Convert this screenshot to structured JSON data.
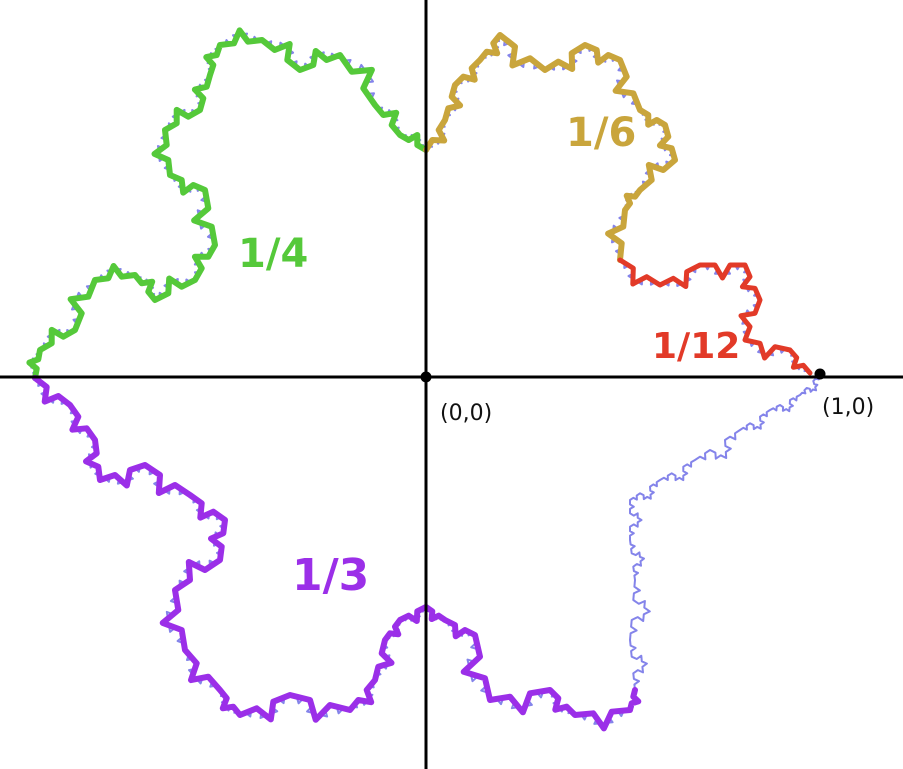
{
  "axes": {
    "origin_label": "(0,0)",
    "unit_label": "(1,0)"
  },
  "fractions": [
    {
      "text": "1/4",
      "color": "#55c93a"
    },
    {
      "text": "1/6",
      "color": "#c9a53c"
    },
    {
      "text": "1/12",
      "color": "#e23a28"
    },
    {
      "text": "1/3",
      "color": "#9b2fe8"
    }
  ],
  "colors": {
    "background": "#ffffff",
    "axis": "#000000",
    "fractal_outline": "#6f6fe6",
    "green": "#55c93a",
    "gold": "#c9a53c",
    "red": "#e23a28",
    "purple": "#9b2fe8"
  }
}
